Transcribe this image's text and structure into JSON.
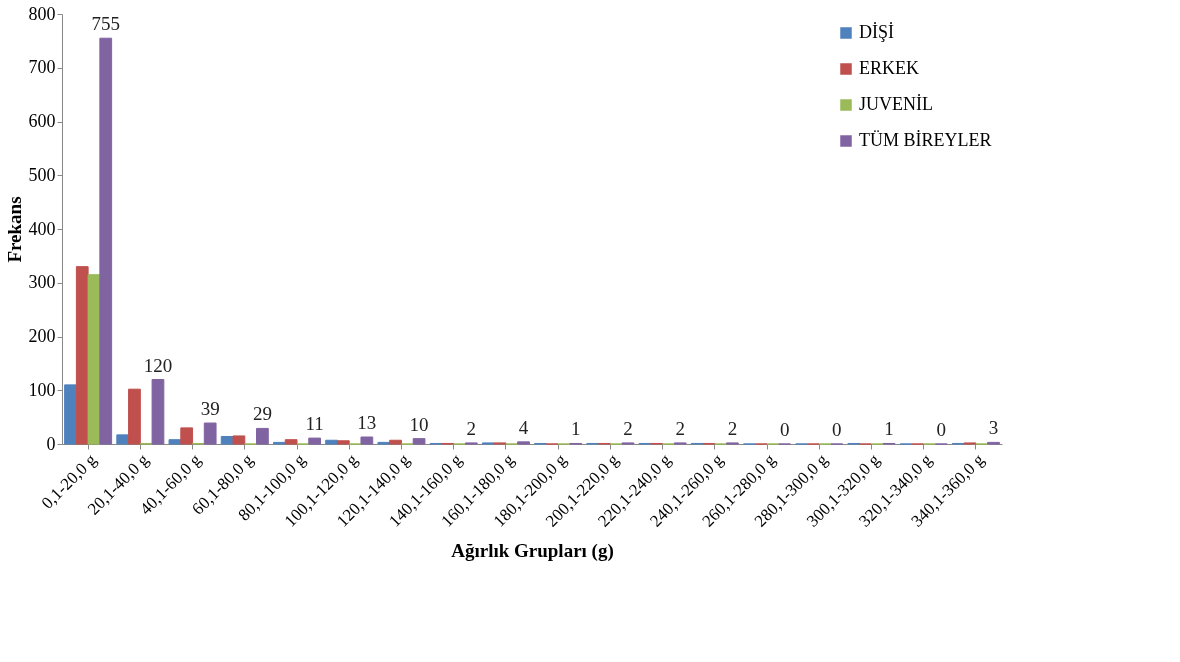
{
  "chart_data": {
    "type": "bar",
    "xlabel": "Ağırlık Grupları (g)",
    "ylabel": "Frekans",
    "categories": [
      "0,1-20,0 g",
      "20,1-40,0 g",
      "40,1-60,0 g",
      "60,1-80,0 g",
      "80,1-100,0 g",
      "100,1-120,0 g",
      "120,1-140,0 g",
      "140,1-160,0 g",
      "160,1-180,0 g",
      "180,1-200,0 g",
      "200,1-220,0 g",
      "220,1-240,0 g",
      "240,1-260,0 g",
      "260,1-280,0 g",
      "280,1-300,0 g",
      "300,1-320,0 g",
      "320,1-340,0 g",
      "340,1-360,0 g"
    ],
    "series": [
      {
        "name": "DİŞİ",
        "color": "#4f81bd",
        "values": [
          110,
          17,
          8,
          14,
          3,
          7,
          3,
          1,
          2,
          1,
          1,
          1,
          1,
          0,
          0,
          1,
          0,
          1
        ]
      },
      {
        "name": "ERKEK",
        "color": "#c0504d",
        "values": [
          330,
          102,
          30,
          15,
          8,
          6,
          7,
          1,
          2,
          0,
          1,
          1,
          1,
          0,
          0,
          0,
          0,
          2
        ]
      },
      {
        "name": "JUVENİL",
        "color": "#9bbb59",
        "values": [
          315,
          1,
          1,
          0,
          0,
          0,
          0,
          0,
          0,
          0,
          0,
          0,
          0,
          0,
          0,
          0,
          0,
          0
        ]
      },
      {
        "name": "TÜM BİREYLER",
        "color": "#8064a2",
        "values": [
          755,
          120,
          39,
          29,
          11,
          13,
          10,
          2,
          4,
          1,
          2,
          2,
          2,
          0,
          0,
          1,
          0,
          3
        ],
        "value_labels": [
          "755",
          "120",
          "39",
          "29",
          "11",
          "13",
          "10",
          "2",
          "4",
          "1",
          "2",
          "2",
          "2",
          "0",
          "0",
          "1",
          "0",
          "3"
        ]
      }
    ],
    "ylim": [
      0,
      800
    ],
    "yticks": [
      0,
      100,
      200,
      300,
      400,
      500,
      600,
      700,
      800
    ],
    "grid": false,
    "legend": "top right"
  }
}
